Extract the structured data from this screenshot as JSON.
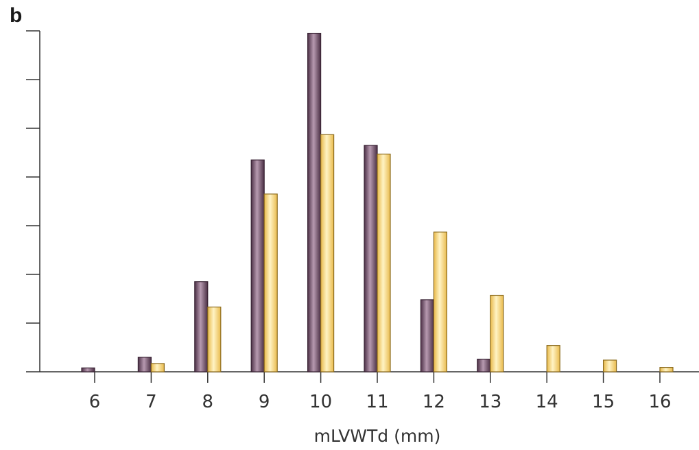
{
  "panel_label": "b",
  "chart_data": {
    "type": "bar",
    "xlabel": "mLVWTd (mm)",
    "ylabel": "",
    "categories": [
      "6",
      "7",
      "8",
      "9",
      "10",
      "11",
      "12",
      "13",
      "14",
      "15",
      "16"
    ],
    "ylim": [
      0,
      7
    ],
    "yticks": [
      0,
      1,
      2,
      3,
      4,
      5,
      6,
      7
    ],
    "ytick_labels_shown": false,
    "grid": false,
    "legend": "none",
    "series": [
      {
        "color": "#6b4a64",
        "values": [
          0.08,
          0.3,
          1.85,
          4.35,
          6.95,
          4.65,
          1.48,
          0.26,
          0,
          0,
          0
        ]
      },
      {
        "color": "#f5d36e",
        "values": [
          0,
          0.17,
          1.33,
          3.65,
          4.87,
          4.47,
          2.87,
          1.57,
          0.54,
          0.24,
          0.09
        ]
      }
    ]
  }
}
